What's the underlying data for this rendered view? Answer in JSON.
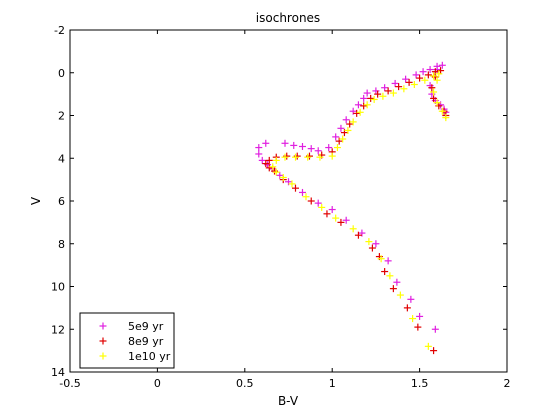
{
  "chart_data": {
    "type": "scatter",
    "title": "isochrones",
    "xlabel": "B-V",
    "ylabel": "V",
    "xlim": [
      -0.5,
      2
    ],
    "ylim": [
      -2,
      14
    ],
    "y_inverted": true,
    "grid": false,
    "legend_position": "bottom-left",
    "xticks": [
      "-0.5",
      "0",
      "0.5",
      "1",
      "1.5",
      "2"
    ],
    "yticks": [
      "-2",
      "0",
      "2",
      "4",
      "6",
      "8",
      "10",
      "12",
      "14"
    ],
    "series": [
      {
        "name": "5e9 yr",
        "color": "#e020e0",
        "marker": "+",
        "points": [
          [
            1.59,
            12.0
          ],
          [
            1.5,
            11.4
          ],
          [
            1.45,
            10.6
          ],
          [
            1.37,
            9.8
          ],
          [
            1.32,
            8.8
          ],
          [
            1.25,
            8.0
          ],
          [
            1.17,
            7.5
          ],
          [
            1.08,
            6.9
          ],
          [
            1.0,
            6.4
          ],
          [
            0.92,
            6.1
          ],
          [
            0.83,
            5.6
          ],
          [
            0.75,
            5.1
          ],
          [
            0.7,
            4.8
          ],
          [
            0.66,
            4.5
          ],
          [
            0.63,
            4.3
          ],
          [
            0.6,
            4.1
          ],
          [
            0.58,
            3.8
          ],
          [
            0.58,
            3.5
          ],
          [
            0.62,
            3.3
          ],
          [
            0.73,
            3.3
          ],
          [
            0.78,
            3.4
          ],
          [
            0.83,
            3.45
          ],
          [
            0.88,
            3.55
          ],
          [
            0.92,
            3.65
          ],
          [
            0.98,
            3.5
          ],
          [
            1.02,
            3.0
          ],
          [
            1.05,
            2.6
          ],
          [
            1.08,
            2.2
          ],
          [
            1.12,
            1.8
          ],
          [
            1.15,
            1.5
          ],
          [
            1.18,
            1.2
          ],
          [
            1.2,
            0.95
          ],
          [
            1.25,
            0.85
          ],
          [
            1.3,
            0.7
          ],
          [
            1.36,
            0.5
          ],
          [
            1.42,
            0.3
          ],
          [
            1.48,
            0.1
          ],
          [
            1.52,
            -0.05
          ],
          [
            1.56,
            -0.15
          ],
          [
            1.6,
            -0.3
          ],
          [
            1.63,
            -0.35
          ],
          [
            1.6,
            -0.15
          ],
          [
            1.58,
            0.15
          ],
          [
            1.56,
            0.6
          ],
          [
            1.57,
            1.0
          ],
          [
            1.59,
            1.3
          ],
          [
            1.62,
            1.5
          ],
          [
            1.64,
            1.7
          ],
          [
            1.65,
            1.85
          ]
        ]
      },
      {
        "name": "8e9 yr",
        "color": "#e00000",
        "marker": "+",
        "points": [
          [
            1.58,
            13.0
          ],
          [
            1.49,
            11.9
          ],
          [
            1.43,
            11.0
          ],
          [
            1.35,
            10.1
          ],
          [
            1.3,
            9.3
          ],
          [
            1.27,
            8.6
          ],
          [
            1.23,
            8.2
          ],
          [
            1.15,
            7.6
          ],
          [
            1.05,
            7.0
          ],
          [
            0.97,
            6.6
          ],
          [
            0.88,
            6.0
          ],
          [
            0.79,
            5.4
          ],
          [
            0.72,
            5.0
          ],
          [
            0.67,
            4.6
          ],
          [
            0.64,
            4.45
          ],
          [
            0.62,
            4.25
          ],
          [
            0.64,
            4.1
          ],
          [
            0.68,
            3.95
          ],
          [
            0.74,
            3.9
          ],
          [
            0.8,
            3.9
          ],
          [
            0.87,
            3.9
          ],
          [
            0.94,
            3.85
          ],
          [
            1.0,
            3.7
          ],
          [
            1.04,
            3.2
          ],
          [
            1.07,
            2.8
          ],
          [
            1.1,
            2.4
          ],
          [
            1.14,
            1.9
          ],
          [
            1.18,
            1.55
          ],
          [
            1.22,
            1.2
          ],
          [
            1.26,
            1.0
          ],
          [
            1.32,
            0.85
          ],
          [
            1.38,
            0.65
          ],
          [
            1.44,
            0.45
          ],
          [
            1.5,
            0.25
          ],
          [
            1.55,
            0.1
          ],
          [
            1.59,
            -0.05
          ],
          [
            1.62,
            -0.1
          ],
          [
            1.59,
            0.2
          ],
          [
            1.57,
            0.7
          ],
          [
            1.58,
            1.2
          ],
          [
            1.61,
            1.55
          ],
          [
            1.64,
            1.8
          ],
          [
            1.65,
            2.0
          ]
        ]
      },
      {
        "name": "1e10 yr",
        "color": "#ffff00",
        "marker": "+",
        "points": [
          [
            1.55,
            12.8
          ],
          [
            1.46,
            11.5
          ],
          [
            1.39,
            10.4
          ],
          [
            1.33,
            9.5
          ],
          [
            1.28,
            8.7
          ],
          [
            1.21,
            7.9
          ],
          [
            1.12,
            7.3
          ],
          [
            1.02,
            6.8
          ],
          [
            0.94,
            6.3
          ],
          [
            0.85,
            5.8
          ],
          [
            0.77,
            5.2
          ],
          [
            0.72,
            4.9
          ],
          [
            0.68,
            4.65
          ],
          [
            0.66,
            4.4
          ],
          [
            0.68,
            4.1
          ],
          [
            0.73,
            3.95
          ],
          [
            0.79,
            3.95
          ],
          [
            0.86,
            3.95
          ],
          [
            0.93,
            3.95
          ],
          [
            1.0,
            3.9
          ],
          [
            1.03,
            3.5
          ],
          [
            1.06,
            3.1
          ],
          [
            1.09,
            2.7
          ],
          [
            1.12,
            2.3
          ],
          [
            1.16,
            1.85
          ],
          [
            1.2,
            1.5
          ],
          [
            1.24,
            1.25
          ],
          [
            1.29,
            1.1
          ],
          [
            1.35,
            0.95
          ],
          [
            1.41,
            0.75
          ],
          [
            1.47,
            0.55
          ],
          [
            1.53,
            0.35
          ],
          [
            1.58,
            0.15
          ],
          [
            1.61,
            0.05
          ],
          [
            1.6,
            0.35
          ],
          [
            1.58,
            0.9
          ],
          [
            1.6,
            1.4
          ],
          [
            1.63,
            1.8
          ],
          [
            1.65,
            2.1
          ]
        ]
      }
    ]
  }
}
